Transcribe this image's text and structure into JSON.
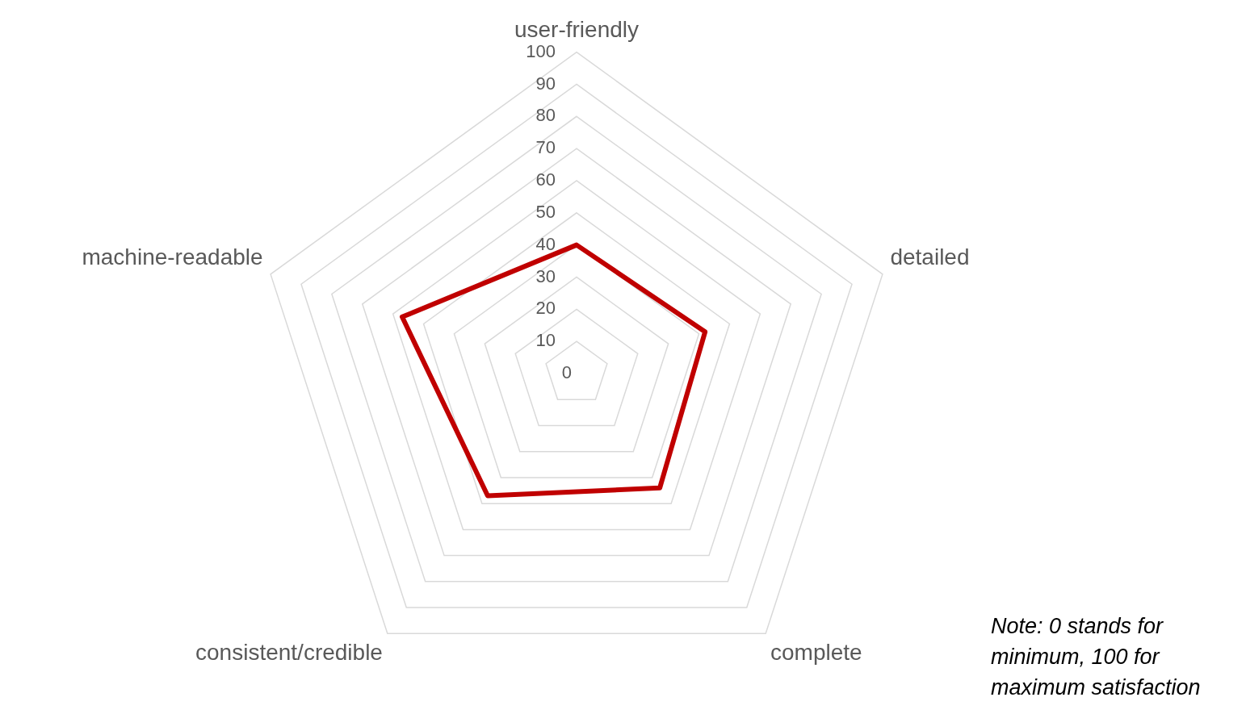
{
  "chart_data": {
    "type": "radar",
    "categories": [
      "user-friendly",
      "detailed",
      "complete",
      "consistent/credible",
      "machine-readable"
    ],
    "series": [
      {
        "color": "#c00000",
        "values": [
          40,
          42,
          44,
          47,
          57
        ]
      }
    ],
    "ylim": [
      0,
      100
    ],
    "yticks": [
      0,
      10,
      20,
      30,
      40,
      50,
      60,
      70,
      80,
      90,
      100
    ],
    "grid": true,
    "marker": "none",
    "legend": false,
    "annotations": [
      "Note: 0 stands for minimum, 100 for maximum satisfaction"
    ]
  }
}
